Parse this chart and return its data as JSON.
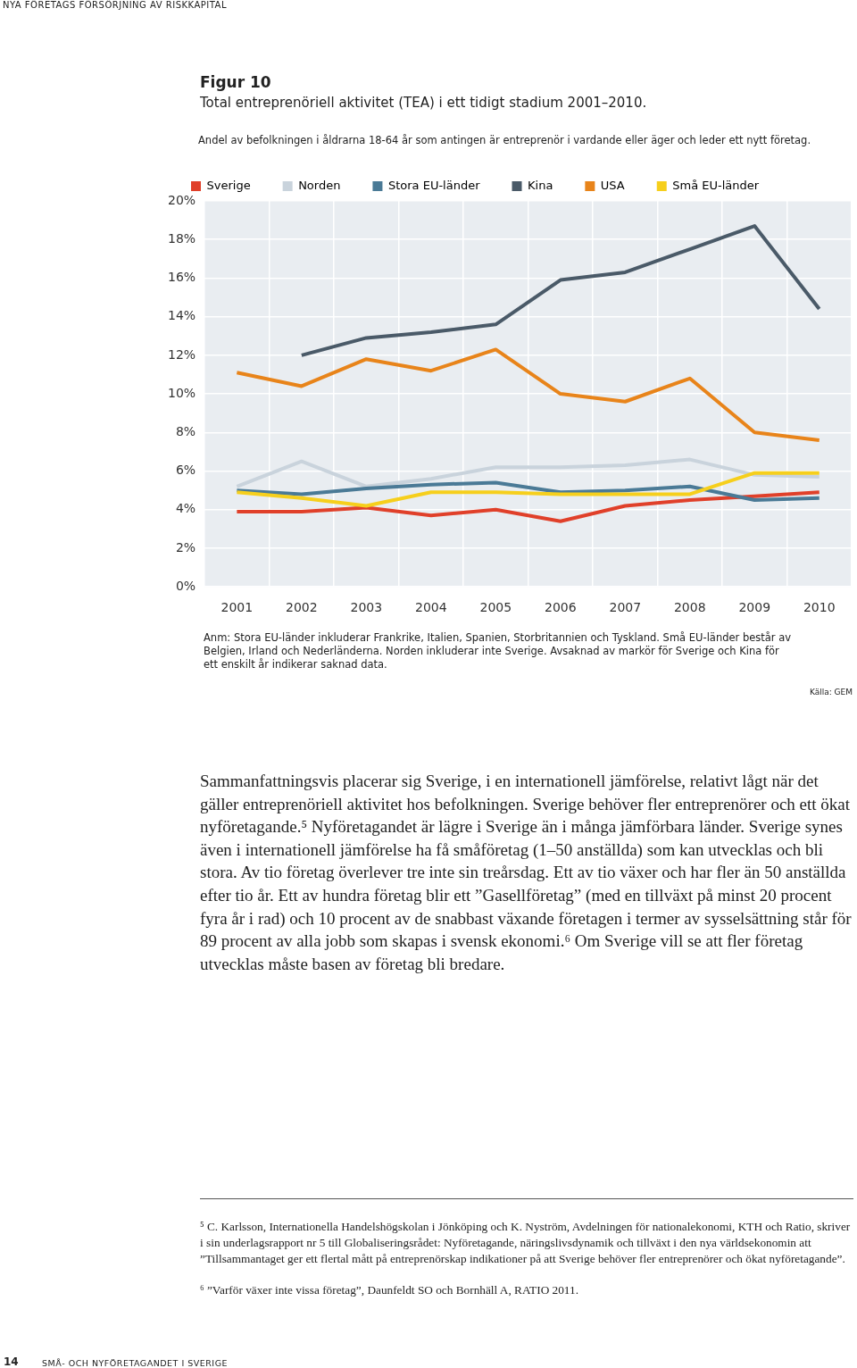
{
  "chart_data": {
    "type": "line",
    "title": "Figur 10",
    "subtitle": "Total entreprenöriell aktivitet (TEA) i ett tidigt stadium 2001–2010.",
    "categories": [
      "2001",
      "2002",
      "2003",
      "2004",
      "2005",
      "2006",
      "2007",
      "2008",
      "2009",
      "2010"
    ],
    "series": [
      {
        "name": "Sverige",
        "color": "#e0402a",
        "values": [
          3.9,
          3.9,
          4.1,
          3.7,
          4.0,
          3.4,
          4.2,
          4.5,
          4.7,
          4.9
        ]
      },
      {
        "name": "Norden",
        "color": "#c9d3dc",
        "values": [
          5.2,
          6.5,
          5.2,
          5.6,
          6.2,
          6.2,
          6.3,
          6.6,
          5.8,
          5.7
        ]
      },
      {
        "name": "Stora EU-länder",
        "color": "#4a7a96",
        "values": [
          5.0,
          4.8,
          5.1,
          5.3,
          5.4,
          4.9,
          5.0,
          5.2,
          4.5,
          4.6
        ]
      },
      {
        "name": "Kina",
        "color": "#4a5a68",
        "values": [
          null,
          12.0,
          12.9,
          13.2,
          13.6,
          15.9,
          16.3,
          17.5,
          18.7,
          14.4
        ]
      },
      {
        "name": "USA",
        "color": "#e8841a",
        "values": [
          11.1,
          10.4,
          11.8,
          11.2,
          12.3,
          10.0,
          9.6,
          10.8,
          8.0,
          7.6
        ]
      },
      {
        "name": "Små EU-länder",
        "color": "#f6cf1c",
        "values": [
          4.9,
          4.6,
          4.2,
          4.9,
          4.9,
          4.8,
          4.8,
          4.8,
          5.9,
          5.9
        ]
      }
    ],
    "ylim": [
      0,
      20
    ],
    "yticks": [
      {
        "value": 0,
        "label": "0%"
      },
      {
        "value": 2,
        "label": "2%"
      },
      {
        "value": 4,
        "label": "4%"
      },
      {
        "value": 6,
        "label": "6%"
      },
      {
        "value": 8,
        "label": "8%"
      },
      {
        "value": 10,
        "label": "10%"
      },
      {
        "value": 12,
        "label": "12%"
      },
      {
        "value": 14,
        "label": "14%"
      },
      {
        "value": 16,
        "label": "16%"
      },
      {
        "value": 18,
        "label": "18%"
      },
      {
        "value": 20,
        "label": "20%"
      }
    ],
    "grid": true,
    "legend": "top",
    "marker": "none",
    "line_style": "solid",
    "annotations": [
      "NYA FÖRETAGS FÖRSÖRJNING AV RISKKAPITAL",
      "Andel av befolkningen i åldrarna 18-64 år som antingen är entreprenör i vardande eller äger och leder ett nytt företag.",
      "Anm: Stora EU-länder inkluderar Frankrike, Italien, Spanien, Storbritannien och Tyskland. Små EU-länder består av Belgien, Irland och Nederländerna. Norden inkluderar inte Sverige. Avsaknad av markör för Sverige och Kina för ett enskilt år indikerar saknad data.",
      "Källa: GEM",
      "Sammanfattningsvis placerar sig Sverige, i en internationell jämförelse, relativt lågt när det gäller entreprenöriell aktivitet hos befolkningen. Sverige behöver fler entreprenörer och ett ökat nyföretagande.⁵ Nyföretagandet är lägre i Sverige än i många jämförbara länder. Sverige synes även i internationell jämförelse ha få småföretag (1–50 anställda) som kan utvecklas och bli stora. Av tio företag överlever tre inte sin treårsdag. Ett av tio växer och har fler än 50 anställda efter tio år. Ett av hundra företag blir ett ”Gasellföretag” (med en tillväxt på minst 20 procent fyra år i rad) och 10 procent av de snabbast växande företagen i termer av sysselsättning står för 89 procent av alla jobb som skapas i svensk ekonomi.⁶ Om Sverige vill se att fler företag utvecklas måste basen av företag bli bredare.",
      "⁵ C. Karlsson, Internationella Handelshögskolan i Jönköping och K. Nyström, Avdelningen för nationalekonomi, KTH och Ratio, skriver i sin underlagsrapport nr 5 till Globaliseringsrådet: Nyföretagande, näringslivsdynamik och tillväxt i den nya världsekonomin att ”Tillsammantaget ger ett flertal mått på entreprenörskap indikationer på att Sverige behöver fler entreprenörer och ökat nyföretagande”.",
      "⁶ ”Varför växer inte vissa företag”, Daunfeldt SO och Bornhäll A, RATIO 2011.",
      "14",
      "SMÅ- OCH NYFÖRETAGANDET I SVERIGE"
    ]
  }
}
